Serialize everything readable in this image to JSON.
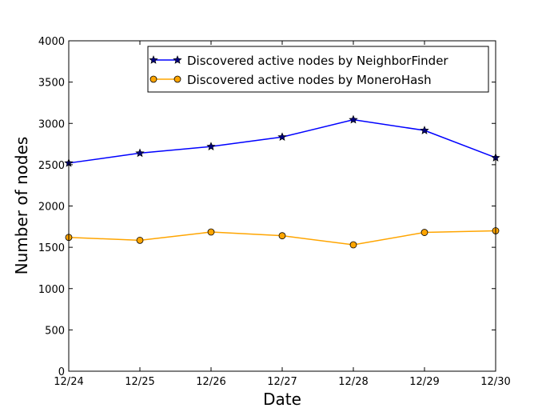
{
  "chart_data": {
    "type": "line",
    "title": "",
    "xlabel": "Date",
    "ylabel": "Number of nodes",
    "categories": [
      "12/24",
      "12/25",
      "12/26",
      "12/27",
      "12/28",
      "12/29",
      "12/30"
    ],
    "ylim": [
      0,
      4000
    ],
    "yticks": [
      0,
      500,
      1000,
      1500,
      2000,
      2500,
      3000,
      3500,
      4000
    ],
    "grid": false,
    "legend_position": "top-right",
    "series": [
      {
        "name": "Discovered active nodes by NeighborFinder",
        "color": "#0000ff",
        "marker": "star",
        "values": [
          2520,
          2640,
          2720,
          2835,
          3045,
          2915,
          2585
        ]
      },
      {
        "name": "Discovered active nodes by MoneroHash",
        "color": "#ffa500",
        "marker": "circle",
        "values": [
          1620,
          1585,
          1685,
          1640,
          1530,
          1680,
          1700
        ]
      }
    ]
  }
}
